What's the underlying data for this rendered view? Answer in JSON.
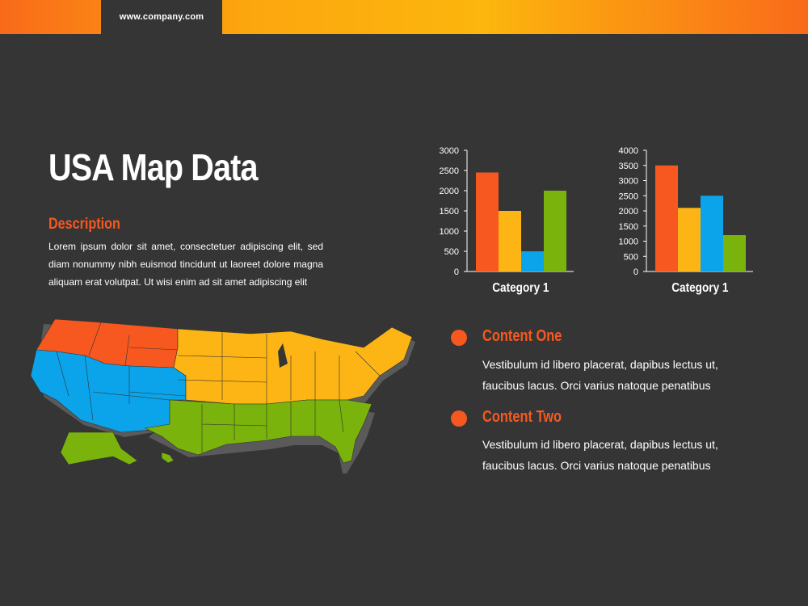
{
  "header": {
    "url": "www.company.com"
  },
  "slide": {
    "title": "USA Map Data",
    "description_heading": "Description",
    "description_text": "Lorem ipsum dolor sit amet, consectetuer adipiscing elit, sed diam nonummy nibh euismod tincidunt ut laoreet dolore magna aliquam erat volutpat. Ut wisi enim ad sit amet adipiscing elit"
  },
  "content": [
    {
      "title": "Content One",
      "text": "Vestibulum id libero placerat, dapibus lectus ut, faucibus lacus. Orci varius natoque penatibus"
    },
    {
      "title": "Content Two",
      "text": "Vestibulum id libero placerat, dapibus lectus ut, faucibus lacus. Orci varius natoque penatibus"
    }
  ],
  "colors": {
    "orange_red": "#f7581f",
    "amber": "#fcb514",
    "blue": "#0ba4ea",
    "green": "#7ab30c",
    "background": "#353535"
  },
  "chart_data": [
    {
      "type": "bar",
      "categories": [
        "Category 1"
      ],
      "series": [
        {
          "values": [
            2450
          ],
          "color": "#f7581f"
        },
        {
          "values": [
            1500
          ],
          "color": "#fcb514"
        },
        {
          "values": [
            500
          ],
          "color": "#0ba4ea"
        },
        {
          "values": [
            2000
          ],
          "color": "#7ab30c"
        }
      ],
      "ylim": [
        0,
        3000
      ],
      "yticks": [
        0,
        500,
        1000,
        1500,
        2000,
        2500,
        3000
      ],
      "grid": false
    },
    {
      "type": "bar",
      "categories": [
        "Category 1"
      ],
      "series": [
        {
          "values": [
            3500
          ],
          "color": "#f7581f"
        },
        {
          "values": [
            2100
          ],
          "color": "#fcb514"
        },
        {
          "values": [
            2500
          ],
          "color": "#0ba4ea"
        },
        {
          "values": [
            1200
          ],
          "color": "#7ab30c"
        }
      ],
      "ylim": [
        0,
        4000
      ],
      "yticks": [
        0,
        500,
        1000,
        1500,
        2000,
        2500,
        3000,
        3500,
        4000
      ],
      "grid": false
    }
  ],
  "map": {
    "regions": [
      {
        "name": "northwest",
        "color": "#f7581f"
      },
      {
        "name": "west",
        "color": "#0ba4ea"
      },
      {
        "name": "midwest-northeast",
        "color": "#fcb514"
      },
      {
        "name": "south",
        "color": "#7ab30c"
      }
    ]
  }
}
